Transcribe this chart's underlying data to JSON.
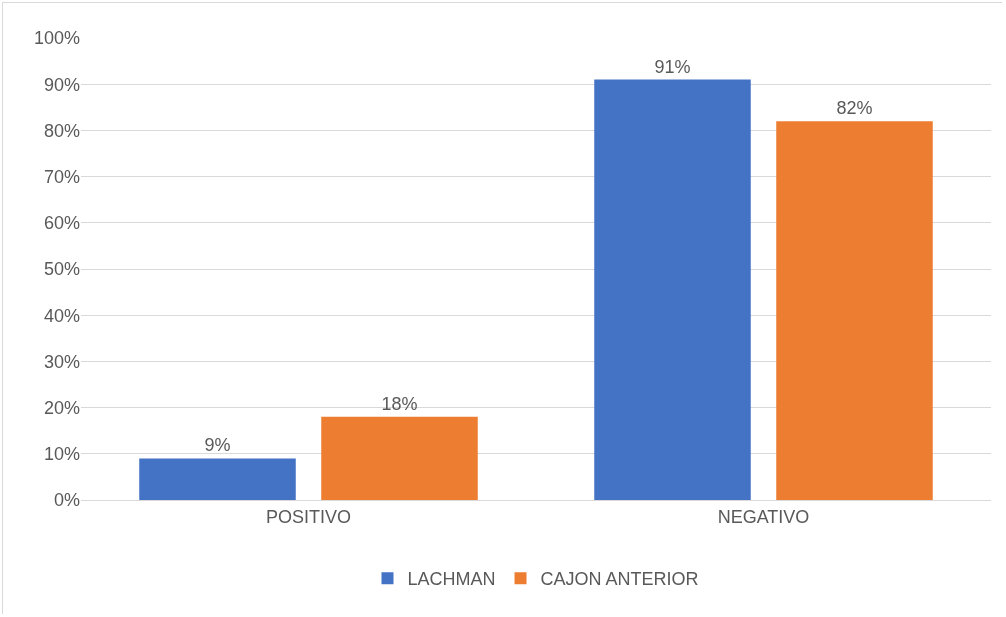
{
  "chart_data": {
    "type": "bar",
    "categories": [
      "POSITIVO",
      "NEGATIVO"
    ],
    "series": [
      {
        "name": "LACHMAN",
        "color": "#4472c4",
        "values": [
          9,
          91
        ],
        "value_labels": [
          "9%",
          "91%"
        ]
      },
      {
        "name": "CAJON ANTERIOR",
        "color": "#ed7d31",
        "values": [
          18,
          82
        ],
        "value_labels": [
          "18%",
          "82%"
        ]
      }
    ],
    "ylim": [
      0,
      100
    ],
    "yticks": [
      {
        "value": 0,
        "label": "0%"
      },
      {
        "value": 10,
        "label": "10%"
      },
      {
        "value": 20,
        "label": "20%"
      },
      {
        "value": 30,
        "label": "30%"
      },
      {
        "value": 40,
        "label": "40%"
      },
      {
        "value": 50,
        "label": "50%"
      },
      {
        "value": 60,
        "label": "60%"
      },
      {
        "value": 70,
        "label": "70%"
      },
      {
        "value": 80,
        "label": "80%"
      },
      {
        "value": 90,
        "label": "90%"
      },
      {
        "value": 100,
        "label": "100%"
      }
    ],
    "grid": "y",
    "legend": "bottom"
  }
}
